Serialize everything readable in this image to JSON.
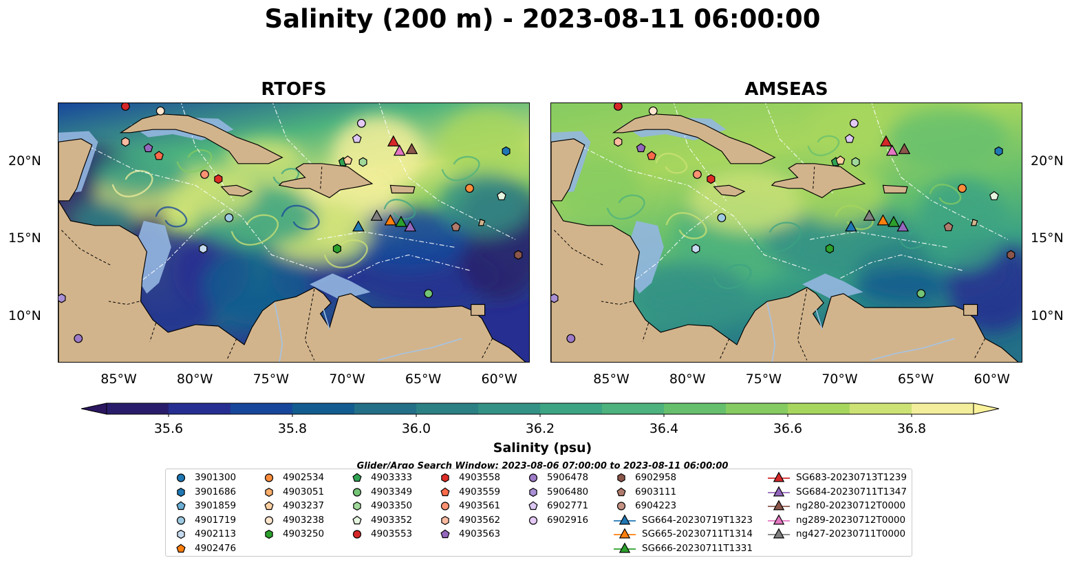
{
  "title": "Salinity (200 m) - 2023-08-11 06:00:00",
  "panels": [
    {
      "title": "RTOFS",
      "model": "rtofs"
    },
    {
      "title": "AMSEAS",
      "model": "amseas"
    }
  ],
  "lat_ticks": [
    {
      "lat": 20,
      "label": "20°N"
    },
    {
      "lat": 15,
      "label": "15°N"
    },
    {
      "lat": 10,
      "label": "10°N"
    }
  ],
  "lon_ticks": [
    {
      "lon": -85,
      "label": "85°W"
    },
    {
      "lon": -80,
      "label": "80°W"
    },
    {
      "lon": -75,
      "label": "75°W"
    },
    {
      "lon": -70,
      "label": "70°W"
    },
    {
      "lon": -65,
      "label": "65°W"
    },
    {
      "lon": -60,
      "label": "60°W"
    }
  ],
  "map_extent": {
    "lon_min": -89,
    "lon_max": -58,
    "lat_min": 7,
    "lat_max": 23.8
  },
  "colorbar": {
    "label": "Salinity (psu)",
    "min": 35.5,
    "max": 36.9,
    "step": 0.1,
    "extend": "both",
    "ticks": [
      "35.6",
      "35.8",
      "36.0",
      "36.2",
      "36.4",
      "36.6",
      "36.8"
    ],
    "colors": [
      "#291d6b",
      "#262f91",
      "#17479b",
      "#135c8f",
      "#226f87",
      "#2b8084",
      "#349185",
      "#3ca383",
      "#4db27d",
      "#66bf6d",
      "#86cb61",
      "#a7d65e",
      "#cde275",
      "#f2ee9b"
    ],
    "under_color": "#2b1660",
    "over_color": "#fbf29c"
  },
  "search_window": "Glider/Argo Search Window: 2023-08-06 07:00:00 to 2023-08-11 06:00:00",
  "legend": [
    {
      "label": "3901300",
      "marker": "circle",
      "color": "#1f77b4"
    },
    {
      "label": "3901686",
      "marker": "hexagon",
      "color": "#1f77b4"
    },
    {
      "label": "3901859",
      "marker": "pentagon",
      "color": "#6baed6"
    },
    {
      "label": "4901719",
      "marker": "circle",
      "color": "#9ecae1"
    },
    {
      "label": "4902113",
      "marker": "hexagon",
      "color": "#c6dbef"
    },
    {
      "label": "4902476",
      "marker": "pentagon",
      "color": "#ff7f0e"
    },
    {
      "label": "4902534",
      "marker": "circle",
      "color": "#fd8d3c"
    },
    {
      "label": "4903051",
      "marker": "hexagon",
      "color": "#fdae6b"
    },
    {
      "label": "4903237",
      "marker": "pentagon",
      "color": "#fdd0a2"
    },
    {
      "label": "4903238",
      "marker": "circle",
      "color": "#fee6ce"
    },
    {
      "label": "4903250",
      "marker": "hexagon",
      "color": "#2ca02c"
    },
    {
      "label": "4903333",
      "marker": "pentagon",
      "color": "#31a354"
    },
    {
      "label": "4903349",
      "marker": "circle",
      "color": "#74c476"
    },
    {
      "label": "4903350",
      "marker": "hexagon",
      "color": "#a1d99b"
    },
    {
      "label": "4903352",
      "marker": "pentagon",
      "color": "#e5f5e0"
    },
    {
      "label": "4903553",
      "marker": "circle",
      "color": "#d62728"
    },
    {
      "label": "4903558",
      "marker": "hexagon",
      "color": "#de2d26"
    },
    {
      "label": "4903559",
      "marker": "pentagon",
      "color": "#fb6a4a"
    },
    {
      "label": "4903561",
      "marker": "circle",
      "color": "#fc9272"
    },
    {
      "label": "4903562",
      "marker": "hexagon",
      "color": "#fcbba1"
    },
    {
      "label": "4903563",
      "marker": "pentagon",
      "color": "#9467bd"
    },
    {
      "label": "5906478",
      "marker": "circle",
      "color": "#9e7bc8"
    },
    {
      "label": "5906480",
      "marker": "hexagon",
      "color": "#a98fd4"
    },
    {
      "label": "6902771",
      "marker": "pentagon",
      "color": "#dcc7f2"
    },
    {
      "label": "6902916",
      "marker": "circle",
      "color": "#e4c9f5"
    },
    {
      "label": "6902958",
      "marker": "hexagon",
      "color": "#8c564b"
    },
    {
      "label": "6903111",
      "marker": "pentagon",
      "color": "#b07b6c"
    },
    {
      "label": "6904223",
      "marker": "circle",
      "color": "#c49183"
    },
    {
      "label": "SG664-20230719T1323",
      "marker": "triangle",
      "color": "#1f77b4"
    },
    {
      "label": "SG665-20230711T1314",
      "marker": "triangle",
      "color": "#ff7f0e"
    },
    {
      "label": "SG666-20230711T1331",
      "marker": "triangle",
      "color": "#2ca02c"
    },
    {
      "label": "SG683-20230713T1239",
      "marker": "triangle",
      "color": "#d62728"
    },
    {
      "label": "SG684-20230711T1347",
      "marker": "triangle",
      "color": "#9467bd"
    },
    {
      "label": "ng280-20230712T0000",
      "marker": "triangle",
      "color": "#8c564b"
    },
    {
      "label": "ng289-20230712T0000",
      "marker": "triangle",
      "color": "#e377c2"
    },
    {
      "label": "ng427-20230711T0000",
      "marker": "triangle",
      "color": "#7f7f7f"
    }
  ],
  "floats": [
    {
      "id": "4903553",
      "lon": -84.6,
      "lat": 23.6,
      "marker": "circle",
      "color": "#d62728"
    },
    {
      "id": "4903238",
      "lon": -82.3,
      "lat": 23.3,
      "marker": "circle",
      "color": "#fee6ce"
    },
    {
      "id": "4903562",
      "lon": -84.6,
      "lat": 21.3,
      "marker": "hexagon",
      "color": "#fcbba1"
    },
    {
      "id": "4903563",
      "lon": -83.1,
      "lat": 20.9,
      "marker": "pentagon",
      "color": "#9467bd"
    },
    {
      "id": "4903559",
      "lon": -82.4,
      "lat": 20.4,
      "marker": "pentagon",
      "color": "#fb6a4a"
    },
    {
      "id": "4903561",
      "lon": -79.4,
      "lat": 19.2,
      "marker": "circle",
      "color": "#fc9272"
    },
    {
      "id": "4903558",
      "lon": -78.5,
      "lat": 18.9,
      "marker": "hexagon",
      "color": "#de2d26"
    },
    {
      "id": "4901719",
      "lon": -77.8,
      "lat": 16.4,
      "marker": "circle",
      "color": "#9ecae1"
    },
    {
      "id": "4902113",
      "lon": -79.5,
      "lat": 14.4,
      "marker": "hexagon",
      "color": "#c6dbef"
    },
    {
      "id": "6902916",
      "lon": -69.1,
      "lat": 22.5,
      "marker": "circle",
      "color": "#e4c9f5"
    },
    {
      "id": "6902771",
      "lon": -69.4,
      "lat": 21.5,
      "marker": "pentagon",
      "color": "#dcc7f2"
    },
    {
      "id": "4903333",
      "lon": -70.3,
      "lat": 20.0,
      "marker": "pentagon",
      "color": "#31a354"
    },
    {
      "id": "4903237",
      "lon": -70.0,
      "lat": 20.1,
      "marker": "pentagon",
      "color": "#fdd0a2"
    },
    {
      "id": "4903350",
      "lon": -69.0,
      "lat": 20.0,
      "marker": "hexagon",
      "color": "#a1d99b"
    },
    {
      "id": "4903352",
      "lon": -59.9,
      "lat": 17.8,
      "marker": "pentagon",
      "color": "#e5f5e0"
    },
    {
      "id": "3901686",
      "lon": -59.6,
      "lat": 20.7,
      "marker": "hexagon",
      "color": "#1f77b4"
    },
    {
      "id": "4902534",
      "lon": -62.0,
      "lat": 18.3,
      "marker": "circle",
      "color": "#fd8d3c"
    },
    {
      "id": "4903250",
      "lon": -70.7,
      "lat": 14.4,
      "marker": "hexagon",
      "color": "#2ca02c"
    },
    {
      "id": "4903349",
      "lon": -64.7,
      "lat": 11.5,
      "marker": "circle",
      "color": "#74c476"
    },
    {
      "id": "6903111",
      "lon": -62.9,
      "lat": 15.8,
      "marker": "pentagon",
      "color": "#b07b6c"
    },
    {
      "id": "6902958",
      "lon": -58.8,
      "lat": 14.0,
      "marker": "hexagon",
      "color": "#8c564b"
    },
    {
      "id": "5906478",
      "lon": -87.7,
      "lat": 8.6,
      "marker": "circle",
      "color": "#9e7bc8"
    },
    {
      "id": "5906480",
      "lon": -88.8,
      "lat": 11.2,
      "marker": "hexagon",
      "color": "#a98fd4"
    }
  ],
  "gliders": [
    {
      "id": "SG664-20230719T1323",
      "lon": -69.3,
      "lat": 15.8,
      "color": "#1f77b4"
    },
    {
      "id": "SG665-20230711T1314",
      "lon": -67.2,
      "lat": 16.2,
      "color": "#ff7f0e"
    },
    {
      "id": "SG666-20230711T1331",
      "lon": -66.5,
      "lat": 16.1,
      "color": "#2ca02c"
    },
    {
      "id": "SG683-20230713T1239",
      "lon": -67.0,
      "lat": 21.3,
      "color": "#d62728"
    },
    {
      "id": "SG684-20230711T1347",
      "lon": -65.9,
      "lat": 15.8,
      "color": "#9467bd"
    },
    {
      "id": "ng280-20230712T0000",
      "lon": -65.8,
      "lat": 20.8,
      "color": "#8c564b"
    },
    {
      "id": "ng289-20230712T0000",
      "lon": -66.6,
      "lat": 20.7,
      "color": "#e377c2"
    },
    {
      "id": "ng427-20230711T0000",
      "lon": -68.1,
      "lat": 16.5,
      "color": "#7f7f7f"
    }
  ]
}
